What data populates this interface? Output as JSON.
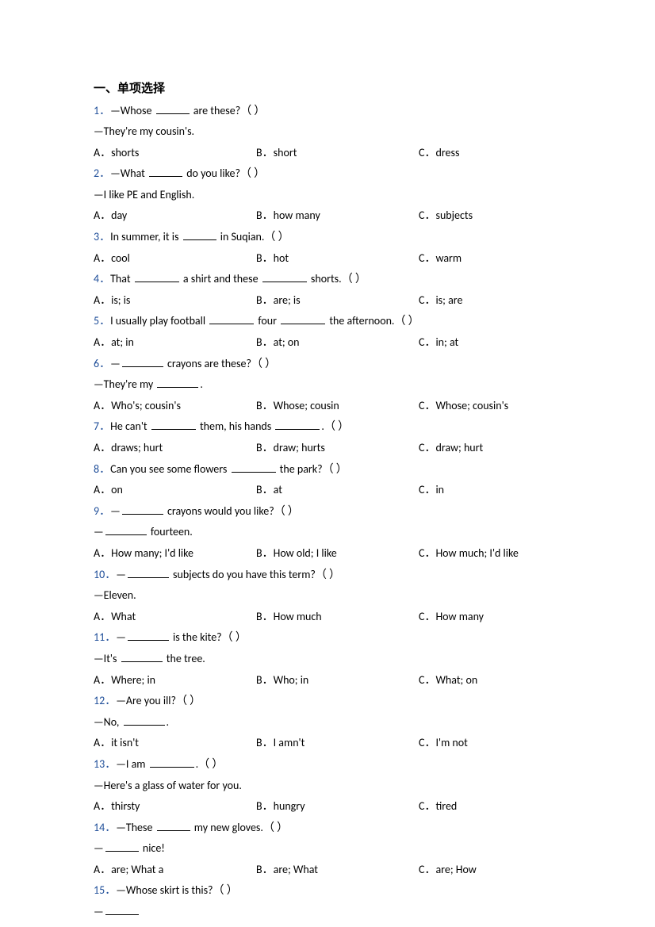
{
  "section_title": "一、单项选择",
  "questions": [
    {
      "num": "1．",
      "stem_parts": [
        "—Whose ",
        " are these?（ ）"
      ],
      "blank_widths": [
        42
      ],
      "followup": "—They're my cousin's.",
      "options": {
        "a": "A．shorts",
        "b": "B．short",
        "c": "C．dress"
      }
    },
    {
      "num": "2．",
      "stem_parts": [
        "—What ",
        " do you like?（ ）"
      ],
      "blank_widths": [
        42
      ],
      "followup": "—I like PE and English.",
      "options": {
        "a": "A．day",
        "b": "B．how many",
        "c": "C．subjects"
      }
    },
    {
      "num": "3．",
      "stem_parts": [
        "In summer, it is ",
        " in Suqian.（ ）"
      ],
      "blank_widths": [
        42
      ],
      "followup": null,
      "options": {
        "a": "A．cool",
        "b": "B．hot",
        "c": "C．warm"
      }
    },
    {
      "num": "4．",
      "stem_parts": [
        "That ",
        " a shirt and these ",
        " shorts.（ ）"
      ],
      "blank_widths": [
        56,
        56
      ],
      "followup": null,
      "options": {
        "a": "A．is; is",
        "b": "B．are; is",
        "c": "C．is; are"
      }
    },
    {
      "num": "5．",
      "stem_parts": [
        "I usually play football ",
        " four ",
        " the afternoon.（ ）"
      ],
      "blank_widths": [
        56,
        56
      ],
      "followup": null,
      "options": {
        "a": "A．at; in",
        "b": "B．at; on",
        "c": "C．in; at"
      }
    },
    {
      "num": "6．",
      "stem_parts": [
        "—",
        " crayons are these?（ ）"
      ],
      "blank_widths": [
        52
      ],
      "followup_parts": [
        "—They're my ",
        "."
      ],
      "followup_blanks": [
        52
      ],
      "options": {
        "a": "A．Who's; cousin's",
        "b": "B．Whose; cousin",
        "c": "C．Whose; cousin's"
      }
    },
    {
      "num": "7．",
      "stem_parts": [
        "He can't ",
        " them, his hands ",
        ".（ ）"
      ],
      "blank_widths": [
        56,
        56
      ],
      "followup": null,
      "options": {
        "a": "A．draws; hurt",
        "b": "B．draw; hurts",
        "c": "C．draw; hurt"
      }
    },
    {
      "num": "8．",
      "stem_parts": [
        "Can you see some flowers ",
        " the park?（ ）"
      ],
      "blank_widths": [
        56
      ],
      "followup": null,
      "options": {
        "a": "A．on",
        "b": "B．at",
        "c": "C．in"
      }
    },
    {
      "num": "9．",
      "stem_parts": [
        "—",
        " crayons would you like?（ ）"
      ],
      "blank_widths": [
        52
      ],
      "followup_parts": [
        "—",
        " fourteen."
      ],
      "followup_blanks": [
        52
      ],
      "options": {
        "a": "A．How many; I'd like",
        "b": "B．How old; I like",
        "c": "C．How much; I'd like"
      }
    },
    {
      "num": "10．",
      "stem_parts": [
        "—",
        " subjects do you have this term?（ ）"
      ],
      "blank_widths": [
        52
      ],
      "followup": "—Eleven.",
      "options": {
        "a": "A．What",
        "b": "B．How much",
        "c": "C．How many"
      }
    },
    {
      "num": "11．",
      "stem_parts": [
        "—",
        " is the kite?（ ）"
      ],
      "blank_widths": [
        52
      ],
      "followup_parts": [
        "—It's ",
        " the tree."
      ],
      "followup_blanks": [
        52
      ],
      "options": {
        "a": "A．Where; in",
        "b": "B．Who; in",
        "c": "C．What; on"
      }
    },
    {
      "num": "12．",
      "stem_parts": [
        "—Are you ill?（ ）"
      ],
      "blank_widths": [],
      "followup_parts": [
        "—No, ",
        "."
      ],
      "followup_blanks": [
        52
      ],
      "options": {
        "a": "A．it isn't",
        "b": "B．I amn't",
        "c": "C．I'm not"
      }
    },
    {
      "num": "13．",
      "stem_parts": [
        "—I am ",
        ".（ ）"
      ],
      "blank_widths": [
        56
      ],
      "followup": "—Here's a glass of water for you.",
      "options": {
        "a": "A．thirsty",
        "b": "B．hungry",
        "c": "C．tired"
      }
    },
    {
      "num": "14．",
      "stem_parts": [
        "—These ",
        " my new gloves.（ ）"
      ],
      "blank_widths": [
        42
      ],
      "followup_parts": [
        "—",
        " nice!"
      ],
      "followup_blanks": [
        42
      ],
      "options": {
        "a": "A．are; What a",
        "b": "B．are; What",
        "c": "C．are; How"
      }
    },
    {
      "num": "15．",
      "stem_parts": [
        "—Whose skirt is this?（ ）"
      ],
      "blank_widths": [],
      "followup_parts": [
        "—",
        ""
      ],
      "followup_blanks": [
        42
      ],
      "options": null
    }
  ],
  "colors": {
    "qnum": "#1f4e99",
    "text": "#000000",
    "background": "#ffffff"
  },
  "typography": {
    "body_fontsize": 14,
    "title_fontsize": 15,
    "line_height": 1.9
  }
}
